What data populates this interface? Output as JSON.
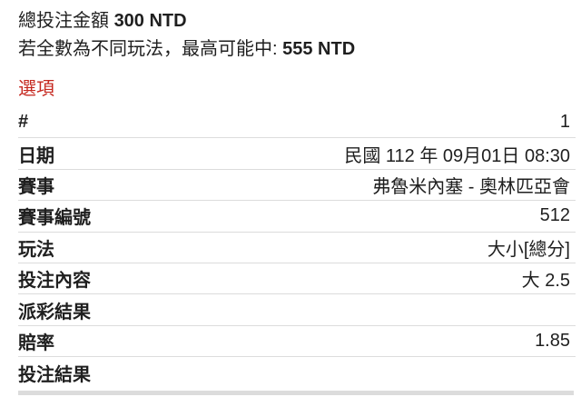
{
  "summary": {
    "total_label": "總投注金額 ",
    "total_value": "300 NTD",
    "max_win_label": "若全數為不同玩法，最高可能中: ",
    "max_win_value": "555 NTD"
  },
  "section_title": "選項",
  "details": {
    "rows": [
      {
        "label": "#",
        "value": "1"
      },
      {
        "label": "日期",
        "value": "民國 112 年 09月01日 08:30"
      },
      {
        "label": "賽事",
        "value": "弗魯米內塞 - 奧林匹亞會"
      },
      {
        "label": "賽事編號",
        "value": "512"
      },
      {
        "label": "玩法",
        "value": "大小[總分]"
      },
      {
        "label": "投注內容",
        "value": "大 2.5"
      },
      {
        "label": "派彩結果",
        "value": ""
      },
      {
        "label": "賠率",
        "value": "1.85"
      },
      {
        "label": "投注結果",
        "value": ""
      }
    ]
  },
  "colors": {
    "text": "#1f1f1f",
    "accent_red": "#c5281f",
    "divider": "#dcdcdc",
    "thick_divider": "#dcdcdc",
    "background": "#ffffff"
  }
}
